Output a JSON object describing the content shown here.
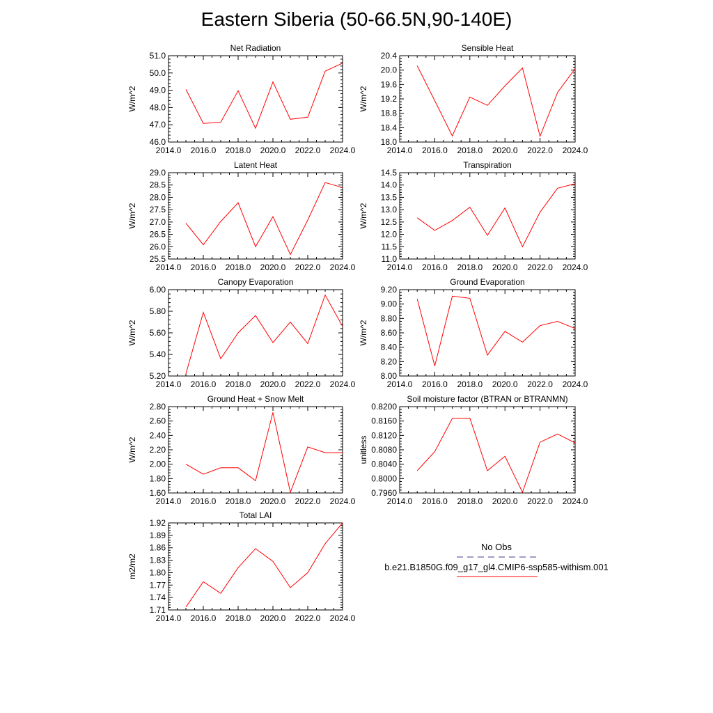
{
  "title": "Eastern Siberia (50-66.5N,90-140E)",
  "line_color": "#ff0000",
  "obs_color": "#3c3c8c",
  "legend": {
    "obs_label": "No Obs",
    "model_label": "b.e21.B1850G.f09_g17_gl4.CMIP6-ssp585-withism.001"
  },
  "chart_data": [
    {
      "type": "line",
      "title": "Net Radiation",
      "ylabel": "W/m^2",
      "xlim": [
        2014,
        2024
      ],
      "ylim": [
        46.0,
        51.0
      ],
      "xticks": [
        "2014.0",
        "2016.0",
        "2018.0",
        "2020.0",
        "2022.0",
        "2024.0"
      ],
      "yticks": [
        "46.0",
        "47.0",
        "48.0",
        "49.0",
        "50.0",
        "51.0"
      ],
      "x": [
        2015,
        2016,
        2017,
        2018,
        2019,
        2020,
        2021,
        2022,
        2023,
        2024
      ],
      "series": [
        {
          "values": [
            49.05,
            47.08,
            47.15,
            48.97,
            46.8,
            49.48,
            47.32,
            47.44,
            50.1,
            50.57
          ]
        }
      ]
    },
    {
      "type": "line",
      "title": "Sensible Heat",
      "ylabel": "W/m^2",
      "xlim": [
        2014,
        2024
      ],
      "ylim": [
        18.0,
        20.4
      ],
      "xticks": [
        "2014.0",
        "2016.0",
        "2018.0",
        "2020.0",
        "2022.0",
        "2024.0"
      ],
      "yticks": [
        "18.0",
        "18.4",
        "18.8",
        "19.2",
        "19.6",
        "20.0",
        "20.4"
      ],
      "x": [
        2015,
        2016,
        2017,
        2018,
        2019,
        2020,
        2021,
        2022,
        2023,
        2024
      ],
      "series": [
        {
          "values": [
            20.12,
            19.15,
            18.17,
            19.25,
            19.02,
            19.56,
            20.06,
            18.16,
            19.38,
            20.04
          ]
        }
      ]
    },
    {
      "type": "line",
      "title": "Latent Heat",
      "ylabel": "W/m^2",
      "xlim": [
        2014,
        2024
      ],
      "ylim": [
        25.5,
        29.0
      ],
      "xticks": [
        "2014.0",
        "2016.0",
        "2018.0",
        "2020.0",
        "2022.0",
        "2024.0"
      ],
      "yticks": [
        "25.5",
        "26.0",
        "26.5",
        "27.0",
        "27.5",
        "28.0",
        "28.5",
        "29.0"
      ],
      "x": [
        2015,
        2016,
        2017,
        2018,
        2019,
        2020,
        2021,
        2022,
        2023,
        2024
      ],
      "series": [
        {
          "values": [
            26.95,
            26.08,
            27.02,
            27.78,
            26.0,
            27.22,
            25.68,
            27.08,
            28.6,
            28.4
          ]
        }
      ]
    },
    {
      "type": "line",
      "title": "Transpiration",
      "ylabel": "W/m^2",
      "xlim": [
        2014,
        2024
      ],
      "ylim": [
        11.0,
        14.5
      ],
      "xticks": [
        "2014.0",
        "2016.0",
        "2018.0",
        "2020.0",
        "2022.0",
        "2024.0"
      ],
      "yticks": [
        "11.0",
        "11.5",
        "12.0",
        "12.5",
        "13.0",
        "13.5",
        "14.0",
        "14.5"
      ],
      "x": [
        2015,
        2016,
        2017,
        2018,
        2019,
        2020,
        2021,
        2022,
        2023,
        2024
      ],
      "series": [
        {
          "values": [
            12.67,
            12.16,
            12.56,
            13.1,
            11.96,
            13.07,
            11.5,
            12.9,
            13.87,
            14.05
          ]
        }
      ]
    },
    {
      "type": "line",
      "title": "Canopy Evaporation",
      "ylabel": "W/m^2",
      "xlim": [
        2014,
        2024
      ],
      "ylim": [
        5.2,
        6.0
      ],
      "xticks": [
        "2014.0",
        "2016.0",
        "2018.0",
        "2020.0",
        "2022.0",
        "2024.0"
      ],
      "yticks": [
        "5.20",
        "5.40",
        "5.60",
        "5.80",
        "6.00"
      ],
      "x": [
        2015,
        2016,
        2017,
        2018,
        2019,
        2020,
        2021,
        2022,
        2023,
        2024
      ],
      "series": [
        {
          "values": [
            5.22,
            5.79,
            5.36,
            5.6,
            5.76,
            5.51,
            5.7,
            5.5,
            5.95,
            5.66
          ]
        }
      ]
    },
    {
      "type": "line",
      "title": "Ground Evaporation",
      "ylabel": "W/m^2",
      "xlim": [
        2014,
        2024
      ],
      "ylim": [
        8.0,
        9.2
      ],
      "xticks": [
        "2014.0",
        "2016.0",
        "2018.0",
        "2020.0",
        "2022.0",
        "2024.0"
      ],
      "yticks": [
        "8.00",
        "8.20",
        "8.40",
        "8.60",
        "8.80",
        "9.00",
        "9.20"
      ],
      "x": [
        2015,
        2016,
        2017,
        2018,
        2019,
        2020,
        2021,
        2022,
        2023,
        2024
      ],
      "series": [
        {
          "values": [
            9.07,
            8.14,
            9.11,
            9.08,
            8.29,
            8.62,
            8.47,
            8.7,
            8.76,
            8.66
          ]
        }
      ]
    },
    {
      "type": "line",
      "title": "Ground Heat + Snow Melt",
      "ylabel": "W/m^2",
      "xlim": [
        2014,
        2024
      ],
      "ylim": [
        1.6,
        2.8
      ],
      "xticks": [
        "2014.0",
        "2016.0",
        "2018.0",
        "2020.0",
        "2022.0",
        "2024.0"
      ],
      "yticks": [
        "1.60",
        "1.80",
        "2.00",
        "2.20",
        "2.40",
        "2.60",
        "2.80"
      ],
      "x": [
        2015,
        2016,
        2017,
        2018,
        2019,
        2020,
        2021,
        2022,
        2023,
        2024
      ],
      "series": [
        {
          "values": [
            2.0,
            1.86,
            1.95,
            1.95,
            1.77,
            2.72,
            1.61,
            2.24,
            2.16,
            2.16
          ]
        }
      ]
    },
    {
      "type": "line",
      "title": "Soil moisture factor (BTRAN or BTRANMN)",
      "ylabel": "unitless",
      "xlim": [
        2014,
        2024
      ],
      "ylim": [
        0.796,
        0.82
      ],
      "xticks": [
        "2014.0",
        "2016.0",
        "2018.0",
        "2020.0",
        "2022.0",
        "2024.0"
      ],
      "yticks": [
        "0.7960",
        "0.8000",
        "0.8040",
        "0.8080",
        "0.8120",
        "0.8160",
        "0.8200"
      ],
      "x": [
        2015,
        2016,
        2017,
        2018,
        2019,
        2020,
        2021,
        2022,
        2023,
        2024
      ],
      "series": [
        {
          "values": [
            0.8022,
            0.8075,
            0.8167,
            0.8168,
            0.8022,
            0.8062,
            0.7962,
            0.8101,
            0.8124,
            0.8099
          ]
        }
      ]
    },
    {
      "type": "line",
      "title": "Total LAI",
      "ylabel": "m2/m2",
      "xlim": [
        2014,
        2024
      ],
      "ylim": [
        1.71,
        1.92
      ],
      "xticks": [
        "2014.0",
        "2016.0",
        "2018.0",
        "2020.0",
        "2022.0",
        "2024.0"
      ],
      "yticks": [
        "1.71",
        "1.74",
        "1.77",
        "1.80",
        "1.83",
        "1.86",
        "1.89",
        "1.92"
      ],
      "x": [
        2015,
        2016,
        2017,
        2018,
        2019,
        2020,
        2021,
        2022,
        2023,
        2024
      ],
      "series": [
        {
          "values": [
            1.717,
            1.778,
            1.75,
            1.812,
            1.858,
            1.827,
            1.764,
            1.8,
            1.87,
            1.92
          ]
        }
      ]
    }
  ]
}
